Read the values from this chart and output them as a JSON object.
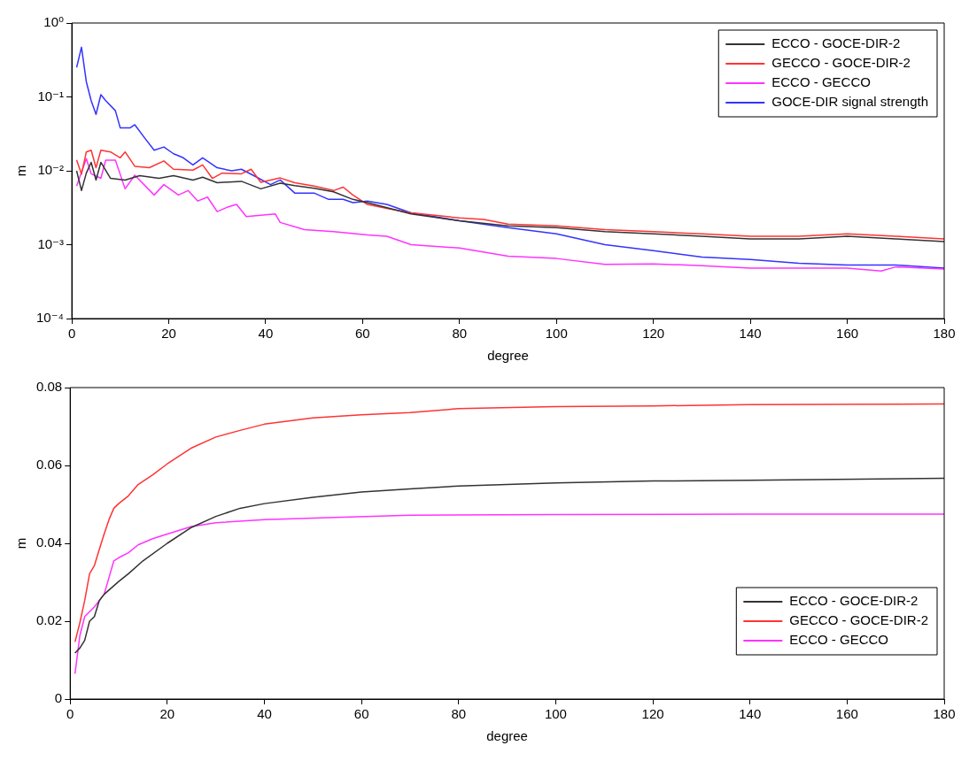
{
  "chart_data": [
    {
      "type": "line",
      "xlabel": "degree",
      "ylabel": "m",
      "log": "y",
      "grid": false,
      "legend": "top right",
      "marker": "none",
      "line_style": "solid",
      "xlim": [
        0,
        180
      ],
      "xticks": [
        0,
        20,
        40,
        60,
        80,
        100,
        120,
        140,
        160,
        180
      ],
      "ylim": [
        0.0001,
        1
      ],
      "yticks": [
        {
          "value": 0.0001,
          "label": "10⁻⁴"
        },
        {
          "value": 0.001,
          "label": "10⁻³"
        },
        {
          "value": 0.01,
          "label": "10⁻²"
        },
        {
          "value": 0.1,
          "label": "10⁻¹"
        },
        {
          "value": 1,
          "label": "10⁰"
        }
      ],
      "series": [
        {
          "name": "ECCO - GOCE-DIR-2",
          "color": "#333333",
          "x": [
            1,
            2,
            3,
            4,
            5,
            6,
            8,
            11,
            14,
            18,
            21,
            25,
            27,
            30,
            35,
            39,
            43,
            46,
            50,
            54,
            58,
            61,
            70,
            80,
            90,
            100,
            110,
            120,
            130,
            140,
            150,
            160,
            170,
            180
          ],
          "values": [
            0.01,
            0.0054,
            0.0093,
            0.013,
            0.0075,
            0.013,
            0.0079,
            0.0075,
            0.0086,
            0.0079,
            0.0086,
            0.0075,
            0.0082,
            0.0069,
            0.0072,
            0.0057,
            0.0068,
            0.0063,
            0.0058,
            0.0052,
            0.0041,
            0.0037,
            0.0026,
            0.0021,
            0.0018,
            0.0017,
            0.0015,
            0.0014,
            0.0013,
            0.0012,
            0.0012,
            0.0013,
            0.0012,
            0.0011
          ]
        },
        {
          "name": "GECCO - GOCE-DIR-2",
          "color": "#ff3333",
          "x": [
            1,
            2,
            3,
            4,
            5,
            6,
            8,
            10,
            11,
            13,
            16,
            19,
            21,
            25,
            27,
            29,
            31,
            35,
            37,
            39,
            43,
            46,
            50,
            54,
            56,
            58,
            61,
            65,
            70,
            80,
            85,
            90,
            100,
            110,
            120,
            130,
            140,
            150,
            160,
            170,
            180
          ],
          "values": [
            0.014,
            0.009,
            0.018,
            0.019,
            0.011,
            0.019,
            0.018,
            0.015,
            0.018,
            0.0115,
            0.011,
            0.0136,
            0.0105,
            0.0102,
            0.012,
            0.0079,
            0.0093,
            0.0091,
            0.0105,
            0.007,
            0.008,
            0.0069,
            0.0062,
            0.0054,
            0.006,
            0.0047,
            0.0035,
            0.0031,
            0.0027,
            0.0023,
            0.0022,
            0.0019,
            0.0018,
            0.0016,
            0.0015,
            0.0014,
            0.0013,
            0.0013,
            0.0014,
            0.0013,
            0.0012
          ]
        },
        {
          "name": "ECCO - GECCO",
          "color": "#ff33ff",
          "x": [
            1,
            3,
            4,
            6,
            7,
            9,
            11,
            13,
            17,
            19,
            22,
            24,
            26,
            28,
            30,
            32,
            34,
            36,
            39,
            42,
            43,
            48,
            54,
            61,
            65,
            70,
            80,
            90,
            100,
            110,
            120,
            130,
            140,
            150,
            160,
            167,
            170,
            180
          ],
          "values": [
            0.0062,
            0.0146,
            0.0091,
            0.0079,
            0.0139,
            0.0139,
            0.0057,
            0.0087,
            0.0047,
            0.0065,
            0.0047,
            0.0054,
            0.0039,
            0.0044,
            0.0028,
            0.0032,
            0.0035,
            0.0024,
            0.0025,
            0.0026,
            0.002,
            0.0016,
            0.0015,
            0.00135,
            0.0013,
            0.001,
            0.0009,
            0.0007,
            0.00065,
            0.00054,
            0.00055,
            0.00052,
            0.00048,
            0.00048,
            0.00048,
            0.00044,
            0.0005,
            0.00047
          ]
        },
        {
          "name": "GOCE-DIR signal strength",
          "color": "#3333ff",
          "x": [
            1,
            2,
            3,
            4,
            5,
            6,
            7,
            9,
            10,
            12,
            13,
            15,
            17,
            19,
            21,
            23,
            25,
            27,
            30,
            33,
            35,
            38,
            41,
            43,
            46,
            50,
            53,
            56,
            58,
            61,
            65,
            70,
            80,
            90,
            100,
            110,
            120,
            130,
            140,
            150,
            160,
            170,
            180
          ],
          "values": [
            0.25,
            0.47,
            0.16,
            0.089,
            0.058,
            0.107,
            0.089,
            0.065,
            0.038,
            0.038,
            0.042,
            0.028,
            0.019,
            0.021,
            0.017,
            0.015,
            0.012,
            0.015,
            0.011,
            0.01,
            0.0105,
            0.0083,
            0.0065,
            0.0075,
            0.005,
            0.005,
            0.0041,
            0.0041,
            0.0037,
            0.0039,
            0.0035,
            0.0027,
            0.0021,
            0.0017,
            0.0014,
            0.001,
            0.00083,
            0.00068,
            0.00063,
            0.00056,
            0.00053,
            0.00053,
            0.00048
          ]
        }
      ]
    },
    {
      "type": "line",
      "xlabel": "degree",
      "ylabel": "m",
      "grid": false,
      "legend": "bottom right",
      "marker": "none",
      "line_style": "solid",
      "xlim": [
        0,
        180
      ],
      "xticks": [
        0,
        20,
        40,
        60,
        80,
        100,
        120,
        140,
        160,
        180
      ],
      "ylim": [
        0,
        0.08
      ],
      "yticks": [
        0,
        0.02,
        0.04,
        0.06,
        0.08
      ],
      "series": [
        {
          "name": "ECCO - GOCE-DIR-2",
          "color": "#333333",
          "x": [
            1,
            2,
            3,
            4,
            5,
            6,
            7,
            10,
            12,
            15,
            20,
            25,
            30,
            35,
            40,
            50,
            60,
            70,
            80,
            100,
            120,
            140,
            180
          ],
          "values": [
            0.0118,
            0.0131,
            0.0151,
            0.02,
            0.0212,
            0.0253,
            0.0269,
            0.0302,
            0.0322,
            0.0355,
            0.04,
            0.0441,
            0.0469,
            0.049,
            0.0502,
            0.0518,
            0.0532,
            0.054,
            0.0547,
            0.0555,
            0.056,
            0.0562,
            0.0567
          ]
        },
        {
          "name": "GECCO - GOCE-DIR-2",
          "color": "#ff3333",
          "x": [
            1,
            2,
            3,
            4,
            5,
            6,
            7,
            8,
            9,
            10,
            12,
            14,
            17,
            20,
            25,
            30,
            35,
            40,
            50,
            60,
            70,
            80,
            100,
            120,
            140,
            180
          ],
          "values": [
            0.0147,
            0.0196,
            0.0253,
            0.0322,
            0.0343,
            0.0384,
            0.0424,
            0.0461,
            0.049,
            0.0502,
            0.0522,
            0.0551,
            0.0576,
            0.0604,
            0.0645,
            0.0673,
            0.069,
            0.0706,
            0.0722,
            0.073,
            0.0736,
            0.0746,
            0.0751,
            0.0753,
            0.0756,
            0.0758
          ]
        },
        {
          "name": "ECCO - GECCO",
          "color": "#ff33ff",
          "x": [
            1,
            2,
            3,
            5,
            7,
            9,
            10,
            12,
            14,
            17,
            20,
            25,
            30,
            40,
            50,
            70,
            100,
            140,
            180
          ],
          "values": [
            0.0065,
            0.0163,
            0.0212,
            0.0237,
            0.0269,
            0.0355,
            0.0363,
            0.0376,
            0.0396,
            0.0412,
            0.0424,
            0.0443,
            0.0453,
            0.0461,
            0.0465,
            0.0472,
            0.0474,
            0.0475,
            0.0475
          ]
        }
      ]
    }
  ]
}
